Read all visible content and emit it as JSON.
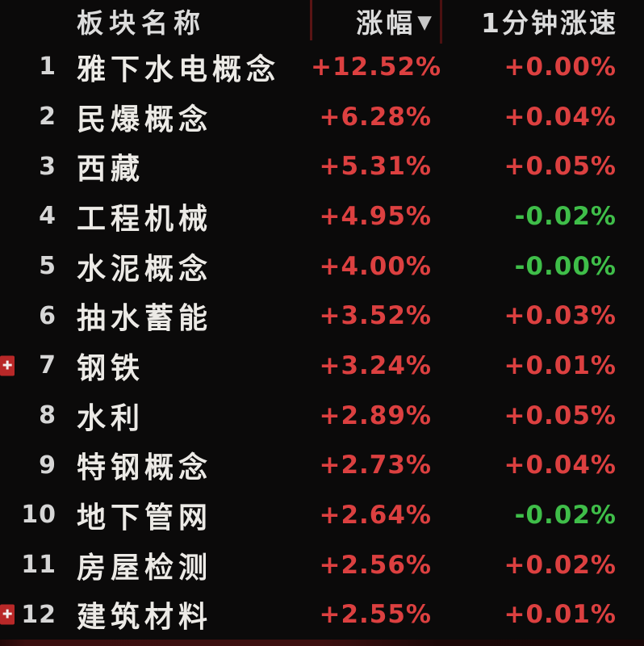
{
  "colors": {
    "background": "#0b0a0a",
    "up_red": "#dc4040",
    "down_green": "#3fbe49",
    "header_text": "#dcdcdc",
    "name_text": "#eceae6",
    "separator_red": "#5a1414",
    "marker_red": "#b82828"
  },
  "table": {
    "headers": {
      "name": "板块名称",
      "change": "涨幅",
      "sort_icon": "▼",
      "speed": "1分钟涨速"
    },
    "rows": [
      {
        "rank": "1",
        "name": "雅下水电概念",
        "change": "+12.52%",
        "change_color": "red",
        "speed": "+0.00%",
        "speed_color": "red",
        "marker": "false"
      },
      {
        "rank": "2",
        "name": "民爆概念",
        "change": "+6.28%",
        "change_color": "red",
        "speed": "+0.04%",
        "speed_color": "red",
        "marker": "false"
      },
      {
        "rank": "3",
        "name": "西藏",
        "change": "+5.31%",
        "change_color": "red",
        "speed": "+0.05%",
        "speed_color": "red",
        "marker": "false"
      },
      {
        "rank": "4",
        "name": "工程机械",
        "change": "+4.95%",
        "change_color": "red",
        "speed": "-0.02%",
        "speed_color": "green",
        "marker": "false"
      },
      {
        "rank": "5",
        "name": "水泥概念",
        "change": "+4.00%",
        "change_color": "red",
        "speed": "-0.00%",
        "speed_color": "green",
        "marker": "false"
      },
      {
        "rank": "6",
        "name": "抽水蓄能",
        "change": "+3.52%",
        "change_color": "red",
        "speed": "+0.03%",
        "speed_color": "red",
        "marker": "false"
      },
      {
        "rank": "7",
        "name": "钢铁",
        "change": "+3.24%",
        "change_color": "red",
        "speed": "+0.01%",
        "speed_color": "red",
        "marker": "true"
      },
      {
        "rank": "8",
        "name": "水利",
        "change": "+2.89%",
        "change_color": "red",
        "speed": "+0.05%",
        "speed_color": "red",
        "marker": "false"
      },
      {
        "rank": "9",
        "name": "特钢概念",
        "change": "+2.73%",
        "change_color": "red",
        "speed": "+0.04%",
        "speed_color": "red",
        "marker": "false"
      },
      {
        "rank": "10",
        "name": "地下管网",
        "change": "+2.64%",
        "change_color": "red",
        "speed": "-0.02%",
        "speed_color": "green",
        "marker": "false"
      },
      {
        "rank": "11",
        "name": "房屋检测",
        "change": "+2.56%",
        "change_color": "red",
        "speed": "+0.02%",
        "speed_color": "red",
        "marker": "false"
      },
      {
        "rank": "12",
        "name": "建筑材料",
        "change": "+2.55%",
        "change_color": "red",
        "speed": "+0.01%",
        "speed_color": "red",
        "marker": "true"
      }
    ]
  }
}
